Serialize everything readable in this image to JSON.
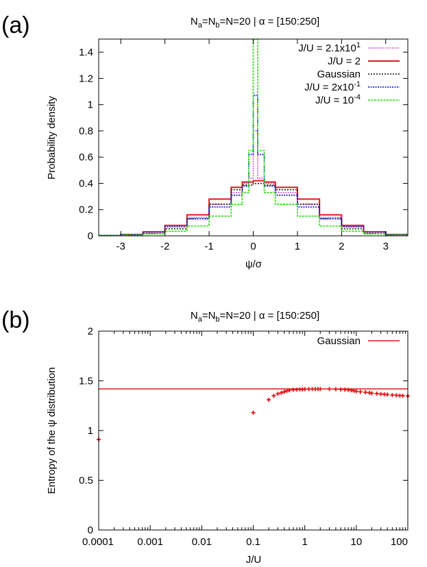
{
  "chart_data": [
    {
      "panel_label": "(a)",
      "type": "line",
      "title": "N_a=N_b=N=20 | α = [150:250]",
      "title_parts": {
        "n": "N",
        "a": "a",
        "eq1": "=N",
        "b": "b",
        "rest": "=N=20 | α = [150:250]"
      },
      "xlabel": "ψ/σ",
      "ylabel": "Probability density",
      "xlim": [
        -3.5,
        3.5
      ],
      "ylim": [
        0,
        1.5
      ],
      "xticks": [
        "-3",
        "-2",
        "-1",
        "0",
        "1",
        "2",
        "3"
      ],
      "yticks": [
        "0",
        "0.2",
        "0.4",
        "0.6",
        "0.8",
        "1",
        "1.2",
        "1.4"
      ],
      "legend_position": "top-right",
      "series": [
        {
          "name": "J/U = 2.1x10^1",
          "legend": {
            "base": "J/U = 2.1x10",
            "exp": "1"
          },
          "color": "#e14fe1",
          "dash": "2,1.5",
          "width": 1.6,
          "x": [
            -3.5,
            -3,
            -2.5,
            -2,
            -1.5,
            -1,
            -0.5,
            -0.25,
            -0.1,
            0,
            0.1,
            0.25,
            0.5,
            1,
            1.5,
            2,
            2.5,
            3,
            3.5
          ],
          "y": [
            0.004,
            0.01,
            0.03,
            0.07,
            0.14,
            0.24,
            0.33,
            0.4,
            0.44,
            0.8,
            0.44,
            0.4,
            0.33,
            0.24,
            0.14,
            0.07,
            0.03,
            0.01,
            0.004
          ]
        },
        {
          "name": "J/U = 2",
          "legend": {
            "base": "J/U = 2",
            "exp": ""
          },
          "color": "#e0191b",
          "dash": "",
          "width": 2,
          "x": [
            -3.5,
            -3,
            -2.5,
            -2,
            -1.5,
            -1,
            -0.5,
            -0.25,
            0,
            0.25,
            0.5,
            1,
            1.5,
            2,
            2.5,
            3,
            3.5
          ],
          "y": [
            0.002,
            0.01,
            0.03,
            0.08,
            0.16,
            0.28,
            0.37,
            0.41,
            0.42,
            0.41,
            0.37,
            0.28,
            0.16,
            0.08,
            0.03,
            0.01,
            0.002
          ]
        },
        {
          "name": "Gaussian",
          "legend": {
            "base": "Gaussian",
            "exp": ""
          },
          "color": "#111111",
          "dash": "2,2",
          "width": 1.6,
          "x": [
            -3.5,
            -3,
            -2.5,
            -2,
            -1.5,
            -1,
            -0.5,
            -0.25,
            0,
            0.25,
            0.5,
            1,
            1.5,
            2,
            2.5,
            3,
            3.5
          ],
          "y": [
            0.001,
            0.004,
            0.018,
            0.054,
            0.13,
            0.242,
            0.352,
            0.387,
            0.399,
            0.387,
            0.352,
            0.242,
            0.13,
            0.054,
            0.018,
            0.004,
            0.001
          ]
        },
        {
          "name": "J/U = 2x10^-1",
          "legend": {
            "base": "J/U = 2x10",
            "exp": "-1"
          },
          "color": "#1f24d6",
          "dash": "2,1.5",
          "width": 1.8,
          "x": [
            -3.5,
            -3,
            -2.5,
            -2,
            -1.5,
            -1,
            -0.5,
            -0.25,
            -0.1,
            0,
            0.1,
            0.25,
            0.5,
            1,
            1.5,
            2,
            2.5,
            3,
            3.5
          ],
          "y": [
            0.004,
            0.01,
            0.03,
            0.07,
            0.13,
            0.22,
            0.31,
            0.38,
            0.62,
            1.07,
            0.62,
            0.38,
            0.31,
            0.22,
            0.13,
            0.07,
            0.03,
            0.01,
            0.004
          ]
        },
        {
          "name": "J/U = 10^-4",
          "legend": {
            "base": "J/U = 10",
            "exp": "-4"
          },
          "color": "#35e21f",
          "dash": "3,1.5",
          "width": 1.8,
          "x": [
            -3.5,
            -3,
            -2.5,
            -2,
            -1.5,
            -1,
            -0.5,
            -0.25,
            -0.1,
            0,
            0.1,
            0.25,
            0.5,
            1,
            1.5,
            2,
            2.5,
            3,
            3.5
          ],
          "y": [
            0.003,
            0.006,
            0.015,
            0.035,
            0.075,
            0.15,
            0.24,
            0.33,
            0.65,
            1.5,
            0.65,
            0.33,
            0.24,
            0.15,
            0.075,
            0.035,
            0.015,
            0.006,
            0.003
          ]
        }
      ]
    },
    {
      "panel_label": "(b)",
      "type": "scatter",
      "title": "N_a=N_b=N=20 | α = [150:250]",
      "title_parts": {
        "n": "N",
        "a": "a",
        "eq1": "=N",
        "b": "b",
        "rest": "=N=20 | α = [150:250]"
      },
      "xlabel": "J/U",
      "ylabel": "Entropy of the ψ distribution",
      "xscale": "log",
      "xlim": [
        0.0001,
        100
      ],
      "ylim": [
        0,
        2
      ],
      "xticks": [
        "0.0001",
        "0.001",
        "0.01",
        "0.1",
        "1",
        "10",
        "100"
      ],
      "yticks": [
        "0",
        "0.5",
        "1",
        "1.5",
        "2"
      ],
      "legend_position": "top-right",
      "gaussian_line": {
        "name": "Gaussian",
        "y": 1.419,
        "color": "#e0191b"
      },
      "points": {
        "color": "#e0191b",
        "x": [
          0.0001,
          0.1,
          0.2,
          0.25,
          0.3,
          0.35,
          0.4,
          0.45,
          0.5,
          0.6,
          0.7,
          0.8,
          0.9,
          1.0,
          1.2,
          1.4,
          1.6,
          1.8,
          2,
          3,
          4,
          5,
          6,
          7,
          8,
          9,
          10,
          12,
          15,
          18,
          20,
          25,
          30,
          35,
          40,
          50,
          60,
          70,
          80,
          100
        ],
        "y": [
          0.91,
          1.18,
          1.31,
          1.35,
          1.37,
          1.38,
          1.39,
          1.4,
          1.405,
          1.41,
          1.412,
          1.414,
          1.415,
          1.416,
          1.417,
          1.418,
          1.418,
          1.418,
          1.418,
          1.418,
          1.416,
          1.414,
          1.412,
          1.41,
          1.405,
          1.4,
          1.395,
          1.39,
          1.385,
          1.38,
          1.376,
          1.372,
          1.368,
          1.365,
          1.362,
          1.358,
          1.355,
          1.352,
          1.35,
          1.348
        ]
      }
    }
  ]
}
